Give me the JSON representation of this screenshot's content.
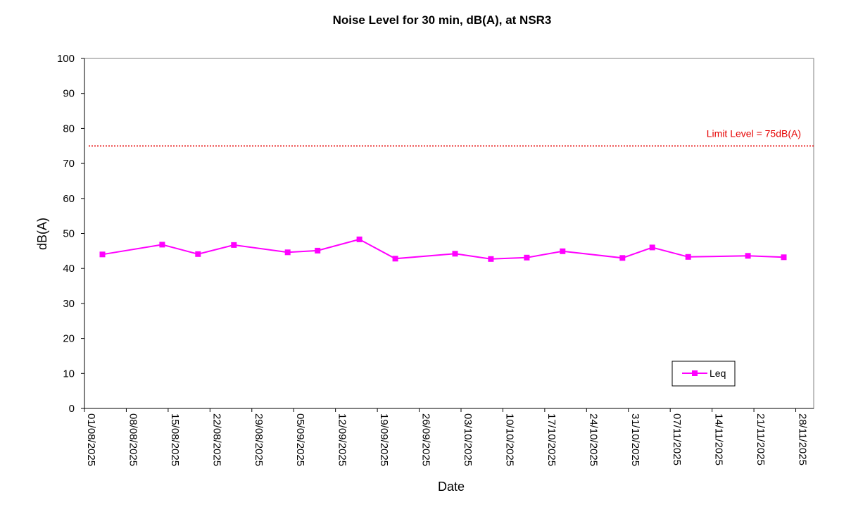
{
  "chart_data": {
    "type": "line",
    "title": "Noise Level for 30 min, dB(A), at NSR3",
    "xlabel": "Date",
    "ylabel": "dB(A)",
    "ylim": [
      0,
      100
    ],
    "y_ticks": [
      0,
      10,
      20,
      30,
      40,
      50,
      60,
      70,
      80,
      90,
      100
    ],
    "xlim": [
      "01/08/2025",
      "01/12/2025"
    ],
    "x_ticks": [
      "01/08/2025",
      "08/08/2025",
      "15/08/2025",
      "22/08/2025",
      "29/08/2025",
      "05/09/2025",
      "12/09/2025",
      "19/09/2025",
      "26/09/2025",
      "03/10/2025",
      "10/10/2025",
      "17/10/2025",
      "24/10/2025",
      "31/10/2025",
      "07/11/2025",
      "14/11/2025",
      "21/11/2025",
      "28/11/2025"
    ],
    "grid": false,
    "legend_position": "bottom-right",
    "series": [
      {
        "name": "Leq",
        "color": "#ff00ff",
        "marker": "square",
        "x": [
          "04/08/2025",
          "14/08/2025",
          "20/08/2025",
          "26/08/2025",
          "04/09/2025",
          "09/09/2025",
          "16/09/2025",
          "22/09/2025",
          "02/10/2025",
          "08/10/2025",
          "14/10/2025",
          "20/10/2025",
          "30/10/2025",
          "04/11/2025",
          "10/11/2025",
          "20/11/2025",
          "26/11/2025"
        ],
        "values": [
          44.0,
          46.8,
          44.1,
          46.7,
          44.6,
          45.1,
          48.3,
          42.8,
          44.2,
          42.7,
          43.1,
          44.9,
          43.0,
          46.0,
          43.3,
          43.6,
          43.2
        ]
      }
    ],
    "reference_lines": [
      {
        "label": "Limit Level = 75dB(A)",
        "value": 75,
        "color": "#e60000",
        "style": "dotted"
      }
    ]
  }
}
